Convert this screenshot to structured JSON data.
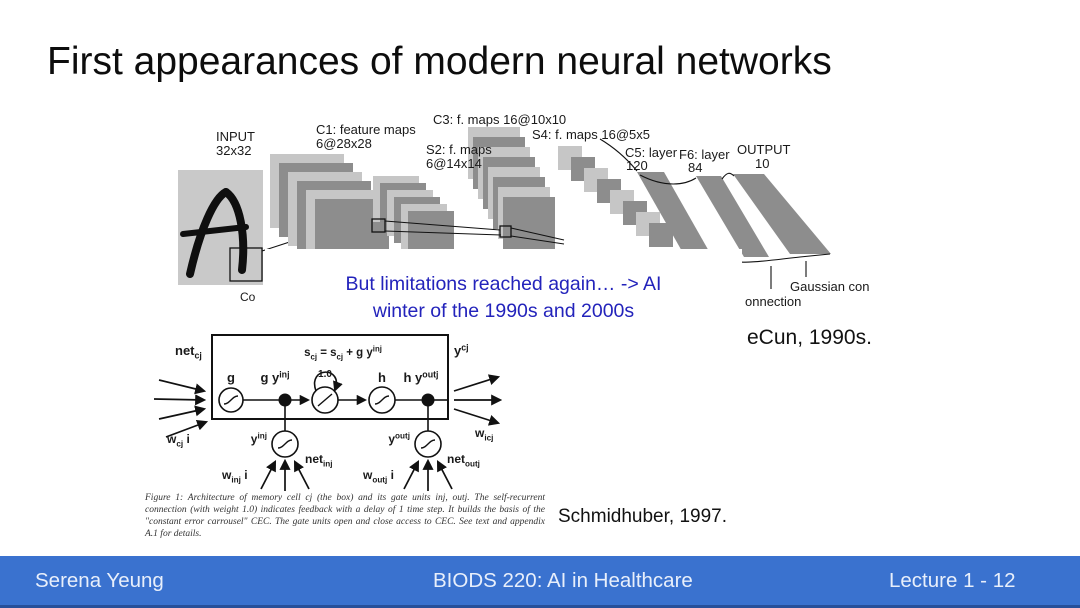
{
  "slide": {
    "title": "First appearances of modern neural networks",
    "note": {
      "line1": "But limitations reached again… -> AI",
      "line2": "winter of the 1990s and 2000s",
      "color": "#2323bb"
    },
    "citations": {
      "lecun": "eCun, 1990s.",
      "schmidhuber": "Schmidhuber, 1997."
    }
  },
  "lenet": {
    "labels": {
      "input": "INPUT",
      "input_size": "32x32",
      "c1": "C1: feature maps",
      "c1_size": "6@28x28",
      "s2": "S2: f. maps",
      "s2_size": "6@14x14",
      "c3": "C3: f. maps 16@10x10",
      "s4": "S4: f. maps 16@5x5",
      "c5": "C5: layer",
      "c5_size": "120",
      "f6": "F6: layer",
      "f6_size": "84",
      "output": "OUTPUT",
      "output_size": "10",
      "gaussian": "Gaussian connections",
      "connection_partial": "onnection",
      "convolutions_partial": "Co"
    },
    "colors": {
      "map_light": "#c6c6c6",
      "map_dark": "#8d8d8d",
      "input_bg": "#c9c9c9"
    }
  },
  "lstm": {
    "labels": {
      "net_c": "net_{cj}",
      "w_c": "w_{cj} i",
      "g": "g",
      "g_y_in": "g y^{inj}",
      "state_eq": "s_{cj} = s_{cj} + g y^{inj}",
      "loop_weight": "1.0",
      "h": "h",
      "h_y_out": "h y^{outj}",
      "y_c": "y^{cj}",
      "w_ic": "w_{icj}",
      "y_in": "y^{inj}",
      "net_in": "net_{inj}",
      "w_in": "w_{inj} i",
      "y_out": "y^{outj}",
      "net_out": "net_{outj}",
      "w_out": "w_{outj} i"
    },
    "caption": "Figure 1: Architecture of memory cell cj (the box) and its gate units inj, outj. The self-recurrent connection (with weight 1.0) indicates feedback with a delay of 1 time step. It builds the basis of the \"constant error carrousel\" CEC. The gate units open and close access to CEC. See text and appendix A.1 for details."
  },
  "footer": {
    "author": "Serena Yeung",
    "course": "BIODS 220: AI in Healthcare",
    "page": "Lecture 1 - 12",
    "bg": "#3a72cf"
  }
}
